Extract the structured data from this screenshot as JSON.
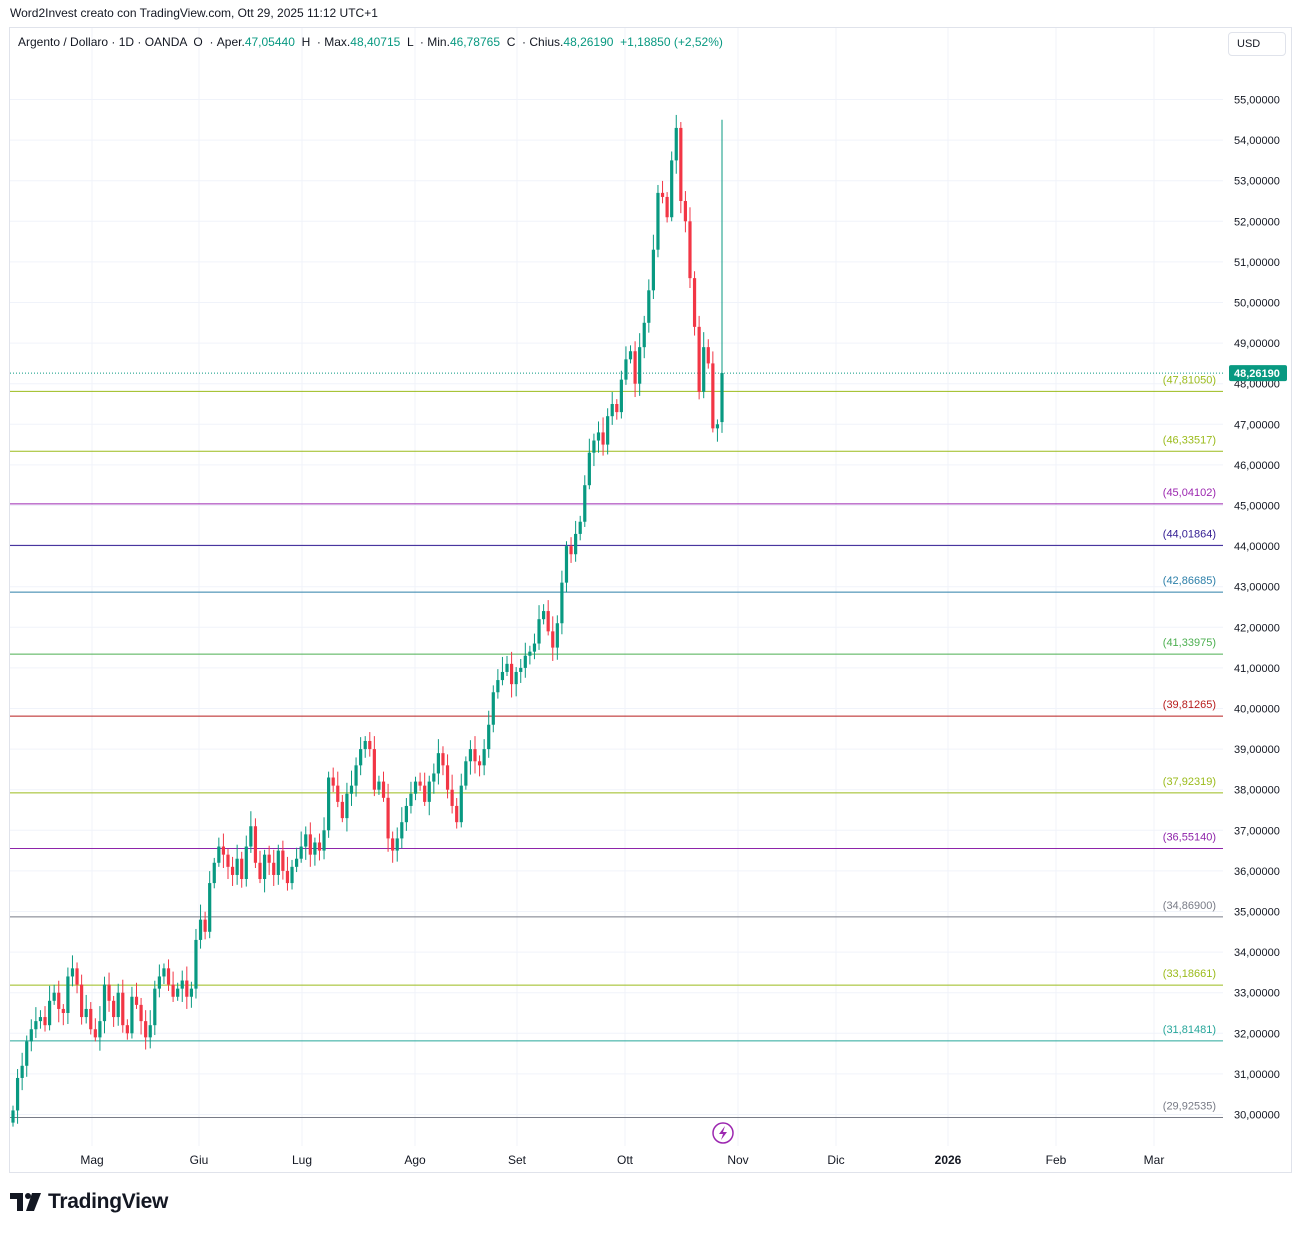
{
  "header": {
    "caption": "Word2Invest creato con TradingView.com, Ott 29, 2025 11:12 UTC+1"
  },
  "legend": {
    "symbol": "Argento / Dollaro · 1D · OANDA",
    "open_label": "O",
    "open_prefix": "Aper.",
    "open_value": "47,05440",
    "high_label": "H",
    "high_prefix": "Max.",
    "high_value": "48,40715",
    "low_label": "L",
    "low_prefix": "Min.",
    "low_value": "46,78765",
    "close_label": "C",
    "close_prefix": "Chius.",
    "close_value": "48,26190",
    "change": "+1,18850 (+2,52%)"
  },
  "currency_button": "USD",
  "brand": {
    "name": "TradingView"
  },
  "colors": {
    "up": "#089981",
    "down": "#f23645",
    "grid": "#f0f3fa"
  },
  "chart_data": {
    "type": "candlestick",
    "symbol": "Argento / Dollaro",
    "timeframe": "1D",
    "source": "OANDA",
    "ylim": [
      29.4,
      55.6
    ],
    "y_ticks": [
      "30,00000",
      "31,00000",
      "32,00000",
      "33,00000",
      "34,00000",
      "35,00000",
      "36,00000",
      "37,00000",
      "38,00000",
      "39,00000",
      "40,00000",
      "41,00000",
      "42,00000",
      "43,00000",
      "44,00000",
      "45,00000",
      "46,00000",
      "47,00000",
      "48,00000",
      "49,00000",
      "50,00000",
      "51,00000",
      "52,00000",
      "53,00000",
      "54,00000",
      "55,00000"
    ],
    "x_tick_labels": [
      "Mag",
      "Giu",
      "Lug",
      "Ago",
      "Set",
      "Ott",
      "Nov",
      "Dic",
      "2026",
      "Feb",
      "Mar"
    ],
    "last_price": {
      "value": 48.2619,
      "label": "48,26190",
      "color": "#089981"
    },
    "levels": [
      {
        "value": 47.8105,
        "label": "(47,81050)",
        "color": "#9bbb1b"
      },
      {
        "value": 46.33517,
        "label": "(46,33517)",
        "color": "#9bbb1b"
      },
      {
        "value": 45.04102,
        "label": "(45,04102)",
        "color": "#9c27b0"
      },
      {
        "value": 44.01864,
        "label": "(44,01864)",
        "color": "#311b92"
      },
      {
        "value": 42.86685,
        "label": "(42,86685)",
        "color": "#2c7fa9"
      },
      {
        "value": 41.33975,
        "label": "(41,33975)",
        "color": "#4caf50"
      },
      {
        "value": 39.81265,
        "label": "(39,81265)",
        "color": "#b71c1c"
      },
      {
        "value": 37.92319,
        "label": "(37,92319)",
        "color": "#9bbb1b"
      },
      {
        "value": 36.5514,
        "label": "(36,55140)",
        "color": "#8e24aa"
      },
      {
        "value": 34.869,
        "label": "(34,86900)",
        "color": "#787b86"
      },
      {
        "value": 33.18661,
        "label": "(33,18661)",
        "color": "#9bbb1b"
      },
      {
        "value": 31.81481,
        "label": "(31,81481)",
        "color": "#26a69a"
      },
      {
        "value": 29.92535,
        "label": "(29,92535)",
        "color": "#787b86"
      }
    ],
    "closes": [
      30.1,
      30.9,
      31.2,
      31.8,
      32.1,
      32.3,
      32.4,
      32.2,
      32.8,
      33.0,
      32.6,
      32.5,
      33.4,
      33.6,
      33.2,
      32.4,
      32.6,
      32.1,
      31.9,
      32.3,
      33.2,
      32.8,
      32.4,
      33.0,
      32.2,
      32.0,
      32.9,
      32.7,
      32.3,
      31.9,
      32.2,
      33.1,
      33.4,
      33.6,
      33.2,
      32.9,
      33.1,
      33.3,
      32.9,
      33.1,
      34.3,
      34.8,
      34.5,
      35.7,
      36.2,
      36.6,
      36.4,
      36.1,
      35.9,
      36.3,
      35.8,
      36.6,
      37.1,
      36.2,
      35.8,
      36.4,
      36.2,
      35.9,
      36.5,
      36.0,
      35.7,
      36.1,
      36.3,
      36.6,
      36.9,
      36.4,
      36.7,
      36.5,
      37.0,
      38.3,
      38.1,
      37.7,
      37.3,
      37.9,
      38.1,
      38.6,
      39.0,
      39.2,
      39.0,
      38.0,
      38.2,
      37.8,
      36.8,
      36.5,
      36.8,
      37.2,
      37.6,
      37.9,
      38.2,
      38.1,
      37.7,
      38.2,
      38.4,
      38.9,
      38.6,
      38.0,
      37.6,
      37.2,
      38.1,
      38.7,
      39.0,
      38.7,
      38.6,
      39.0,
      39.6,
      40.4,
      40.7,
      40.9,
      41.1,
      40.6,
      40.9,
      41.0,
      41.3,
      41.4,
      41.6,
      42.2,
      42.4,
      41.9,
      41.5,
      42.1,
      43.1,
      44.0,
      43.8,
      44.3,
      44.6,
      45.5,
      46.3,
      46.6,
      46.8,
      46.5,
      47.2,
      47.5,
      47.3,
      48.1,
      48.6,
      48.8,
      48.0,
      48.9,
      49.5,
      50.3,
      51.3,
      52.7,
      52.6,
      52.1,
      53.5,
      54.3,
      52.5,
      52.0,
      50.6,
      49.4,
      47.8,
      48.9,
      48.5,
      46.9,
      47.0,
      48.2619
    ]
  }
}
